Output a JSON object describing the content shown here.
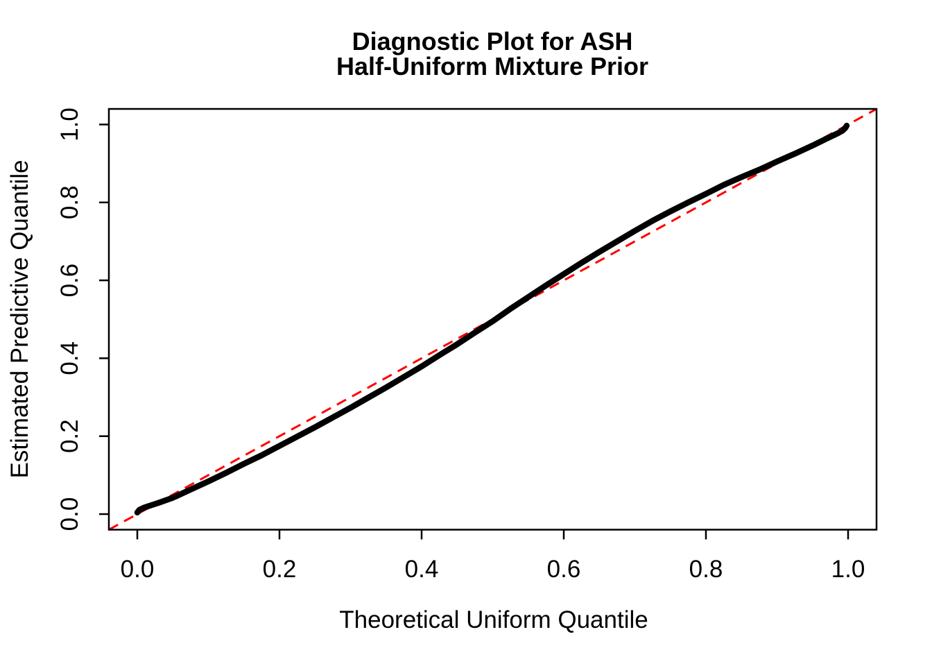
{
  "figure": {
    "title_line1": "Diagnostic Plot for ASH",
    "title_line2": "Half-Uniform Mixture Prior",
    "background_color": "#FFFFFF",
    "text_color": "#000000"
  },
  "chart_data": {
    "type": "line",
    "title": "Diagnostic Plot for ASH\nHalf-Uniform Mixture Prior",
    "xlabel": "Theoretical Uniform Quantile",
    "ylabel": "Estimated Predictive Quantile",
    "xlim": [
      -0.04,
      1.04
    ],
    "ylim": [
      -0.04,
      1.04
    ],
    "grid": "off",
    "legend": "none",
    "x_ticks": [
      0.0,
      0.2,
      0.4,
      0.6,
      0.8,
      1.0
    ],
    "y_ticks": [
      0.0,
      0.2,
      0.4,
      0.6,
      0.8,
      1.0
    ],
    "x_tick_labels": [
      "0.0",
      "0.2",
      "0.4",
      "0.6",
      "0.8",
      "1.0"
    ],
    "y_tick_labels": [
      "0.0",
      "0.2",
      "0.4",
      "0.6",
      "0.8",
      "1.0"
    ],
    "series": [
      {
        "name": "estimated-predictive-quantile-curve",
        "kind": "solid",
        "color": "#000000",
        "stroke_width": 8.5,
        "x": [
          0.0,
          0.003,
          0.01,
          0.02,
          0.03,
          0.05,
          0.075,
          0.1,
          0.125,
          0.15,
          0.175,
          0.2,
          0.225,
          0.25,
          0.275,
          0.3,
          0.325,
          0.35,
          0.375,
          0.4,
          0.425,
          0.45,
          0.475,
          0.5,
          0.525,
          0.55,
          0.575,
          0.6,
          0.625,
          0.65,
          0.675,
          0.7,
          0.725,
          0.75,
          0.775,
          0.8,
          0.825,
          0.85,
          0.875,
          0.9,
          0.925,
          0.95,
          0.97,
          0.985,
          0.992,
          0.996,
          0.998
        ],
        "y": [
          0.004,
          0.011,
          0.017,
          0.023,
          0.029,
          0.042,
          0.063,
          0.084,
          0.106,
          0.129,
          0.151,
          0.175,
          0.199,
          0.223,
          0.248,
          0.273,
          0.299,
          0.325,
          0.352,
          0.379,
          0.408,
          0.436,
          0.466,
          0.495,
          0.527,
          0.557,
          0.587,
          0.616,
          0.645,
          0.673,
          0.7,
          0.727,
          0.753,
          0.777,
          0.8,
          0.822,
          0.845,
          0.865,
          0.884,
          0.905,
          0.925,
          0.946,
          0.964,
          0.977,
          0.984,
          0.991,
          0.997
        ]
      },
      {
        "name": "identity-reference-line",
        "kind": "dashed",
        "color": "#FF0000",
        "stroke_width": 3,
        "dash": [
          15,
          10
        ],
        "x": [
          -0.04,
          1.04
        ],
        "y": [
          -0.04,
          1.04
        ]
      }
    ]
  }
}
